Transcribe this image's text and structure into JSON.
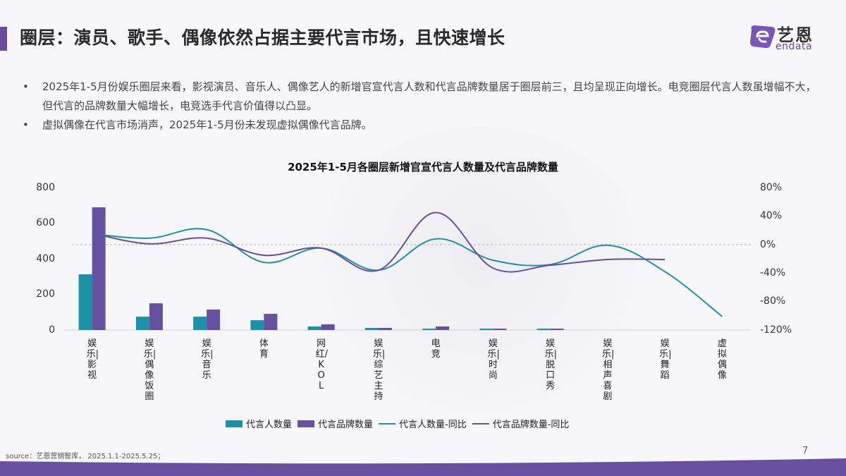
{
  "header": {
    "title": "圈层：演员、歌手、偶像依然占据主要代言市场，且快速增长",
    "logo_cn": "艺恩",
    "logo_en": "endata"
  },
  "bullets": [
    {
      "text": "2025年1-5月份娱乐圈层来看，影视演员、音乐人、偶像艺人的新增官宣代言人数和代言品牌数量居于圈层前三，且均呈现正向增长。电竞圈层代言人数虽增幅不大，但代言的品牌数量大幅增长，电竞选手代言价值得以凸显。"
    },
    {
      "text": "虚拟偶像在代言市场消声，2025年1-5月份未发现虚拟偶像代言品牌。"
    }
  ],
  "bullet_symbol": "•",
  "colors": {
    "teal": "#1b92a8",
    "purple": "#6650a0",
    "accent": "#6a4c9c"
  },
  "chart_data": {
    "type": "bar",
    "title": "2025年1-5月各圈层新增官宣代言人数量及代言品牌数量",
    "categories": [
      "娱乐-影视",
      "娱乐-偶像饭圈",
      "娱乐-音乐",
      "体育",
      "网红/KOL",
      "娱乐-综艺主持",
      "电竞",
      "娱乐-时尚",
      "娱乐-脱口秀",
      "娱乐-相声喜剧",
      "娱乐-舞蹈",
      "虚拟偶像"
    ],
    "series": [
      {
        "name": "代言人数量",
        "type": "bar",
        "axis": "left",
        "color": "#1b92a8",
        "values": [
          313,
          75,
          75,
          55,
          20,
          12,
          6,
          1,
          1,
          0,
          0,
          0
        ]
      },
      {
        "name": "代言品牌数量",
        "type": "bar",
        "axis": "left",
        "color": "#6650a0",
        "values": [
          689,
          150,
          115,
          91,
          32,
          12,
          20,
          4,
          4,
          0,
          0,
          0
        ]
      },
      {
        "name": "代言人数量-同比",
        "type": "line",
        "axis": "right",
        "unit": "%",
        "color": "#1b92a8",
        "values": [
          15,
          9,
          21,
          -25,
          -5,
          -36,
          8,
          -22,
          -28,
          -1,
          -38,
          -101
        ]
      },
      {
        "name": "代言品牌数量-同比",
        "type": "line",
        "axis": "right",
        "unit": "%",
        "color": "#6650a0",
        "values": [
          16,
          1,
          9,
          -15,
          -5,
          -36,
          45,
          -33,
          -29,
          -21,
          -21,
          null
        ]
      }
    ],
    "left_axis": {
      "ticks": [
        "800",
        "600",
        "400",
        "200",
        "0"
      ],
      "ylim": [
        0,
        800
      ]
    },
    "right_axis": {
      "ticks": [
        "80%",
        "40%",
        "0%",
        "-40%",
        "-80%",
        "-120%"
      ],
      "ylim": [
        -120,
        80
      ]
    },
    "xlabel": "",
    "ylabel": "",
    "zero_reference_line": "0%",
    "grid": false,
    "legend_position": "bottom"
  },
  "legend": [
    {
      "label": "代言人数量",
      "kind": "bar",
      "color": "#1b92a8"
    },
    {
      "label": "代言品牌数量",
      "kind": "bar",
      "color": "#6650a0"
    },
    {
      "label": "代言人数量-同比",
      "kind": "line",
      "color": "#1b92a8"
    },
    {
      "label": "代言品牌数量-同比",
      "kind": "line",
      "color": "#6650a0"
    }
  ],
  "footer": {
    "source": "source：艺恩营销智库， 2025.1.1-2025.5.25；",
    "page_number": "7"
  }
}
